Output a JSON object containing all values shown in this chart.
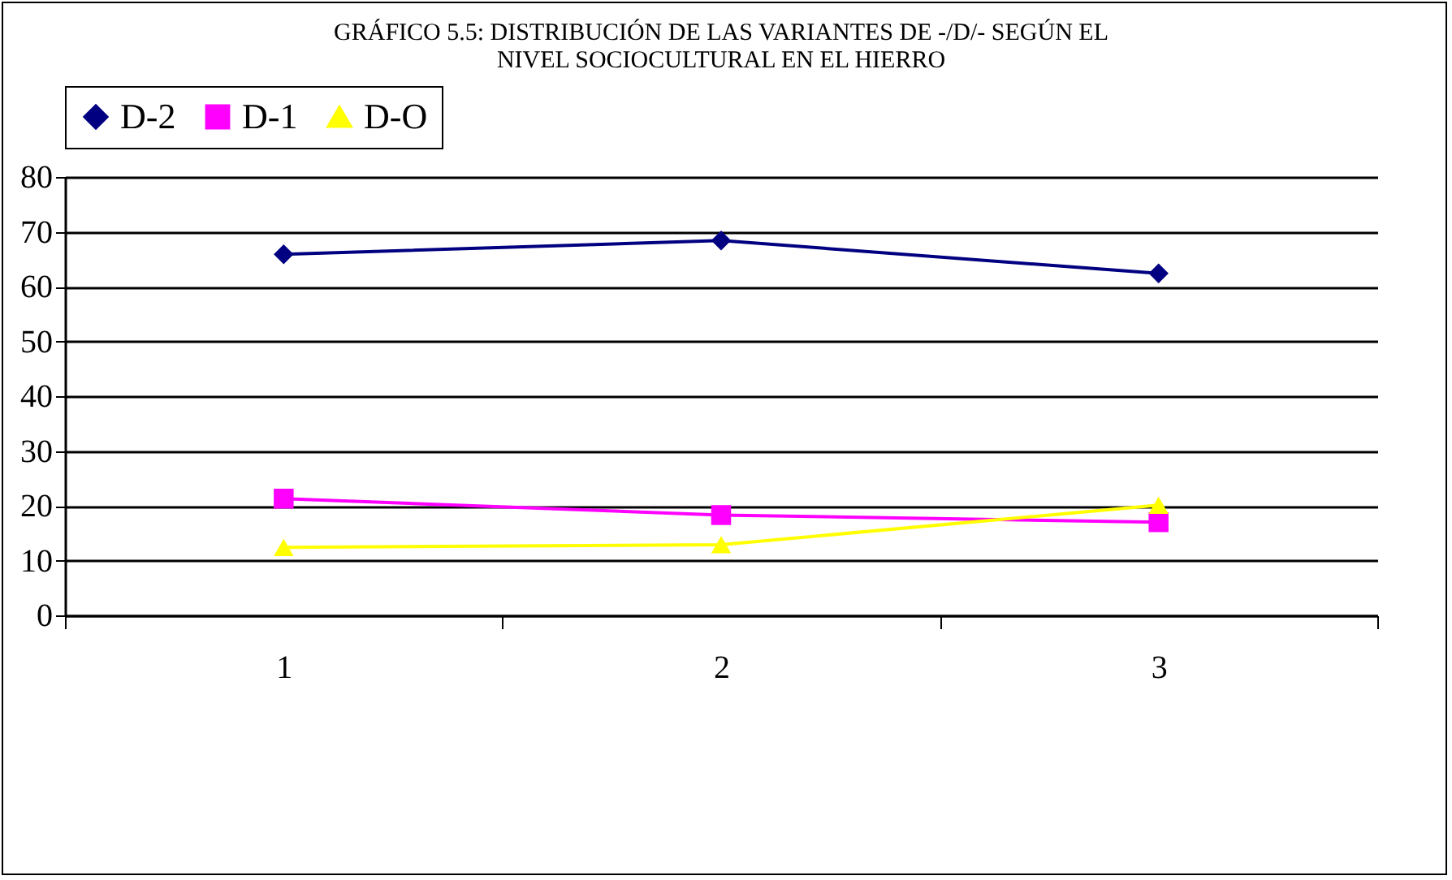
{
  "chart_data": {
    "type": "line",
    "title": "GRÁFICO 5.5: DISTRIBUCIÓN DE LAS VARIANTES DE -/D/- SEGÚN EL\nNIVEL SOCIOCULTURAL EN EL HIERRO",
    "categories": [
      "1",
      "2",
      "3"
    ],
    "series": [
      {
        "name": "D-2",
        "color": "#000080",
        "marker": "diamond",
        "values": [
          65.9,
          68.4,
          62.4
        ]
      },
      {
        "name": "D-1",
        "color": "#ff00ff",
        "marker": "square",
        "values": [
          21.3,
          18.3,
          17.0
        ]
      },
      {
        "name": "D-O",
        "color": "#ffff00",
        "marker": "triangle",
        "values": [
          12.4,
          12.9,
          20.1
        ]
      }
    ],
    "ylim": [
      0,
      80
    ],
    "yticks": [
      0,
      10,
      20,
      30,
      40,
      50,
      60,
      70,
      80
    ],
    "grid": "y",
    "legend": "top",
    "line_style": "solid"
  }
}
